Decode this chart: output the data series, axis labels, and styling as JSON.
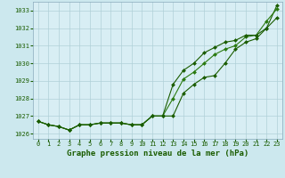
{
  "xlabel": "Graphe pression niveau de la mer (hPa)",
  "background_color": "#cce8ee",
  "plot_background": "#d8eef4",
  "grid_color": "#b0d0d8",
  "line_color_dark": "#1a5c00",
  "line_color_mid": "#2a7a10",
  "x_values": [
    0,
    1,
    2,
    3,
    4,
    5,
    6,
    7,
    8,
    9,
    10,
    11,
    12,
    13,
    14,
    15,
    16,
    17,
    18,
    19,
    20,
    21,
    22,
    23
  ],
  "series1": [
    1026.7,
    1026.5,
    1026.4,
    1026.2,
    1026.5,
    1026.5,
    1026.6,
    1026.6,
    1026.6,
    1026.5,
    1026.5,
    1027.0,
    1027.0,
    1027.0,
    1028.3,
    1028.8,
    1029.2,
    1029.3,
    1030.0,
    1030.8,
    1031.2,
    1031.4,
    1032.0,
    1033.3
  ],
  "series2": [
    1026.7,
    1026.5,
    1026.4,
    1026.2,
    1026.5,
    1026.5,
    1026.6,
    1026.6,
    1026.6,
    1026.5,
    1026.5,
    1027.0,
    1027.0,
    1028.0,
    1029.1,
    1029.5,
    1030.0,
    1030.5,
    1030.8,
    1031.0,
    1031.5,
    1031.6,
    1032.4,
    1033.1
  ],
  "series3": [
    1026.7,
    1026.5,
    1026.4,
    1026.2,
    1026.5,
    1026.5,
    1026.6,
    1026.6,
    1026.6,
    1026.5,
    1026.5,
    1027.0,
    1027.0,
    1028.8,
    1029.6,
    1030.0,
    1030.6,
    1030.9,
    1031.2,
    1031.3,
    1031.6,
    1031.6,
    1032.0,
    1032.6
  ],
  "ylim": [
    1025.7,
    1033.5
  ],
  "yticks": [
    1026,
    1027,
    1028,
    1029,
    1030,
    1031,
    1032,
    1033
  ],
  "xticks": [
    0,
    1,
    2,
    3,
    4,
    5,
    6,
    7,
    8,
    9,
    10,
    11,
    12,
    13,
    14,
    15,
    16,
    17,
    18,
    19,
    20,
    21,
    22,
    23
  ],
  "markersize": 2.0,
  "linewidth": 0.8
}
